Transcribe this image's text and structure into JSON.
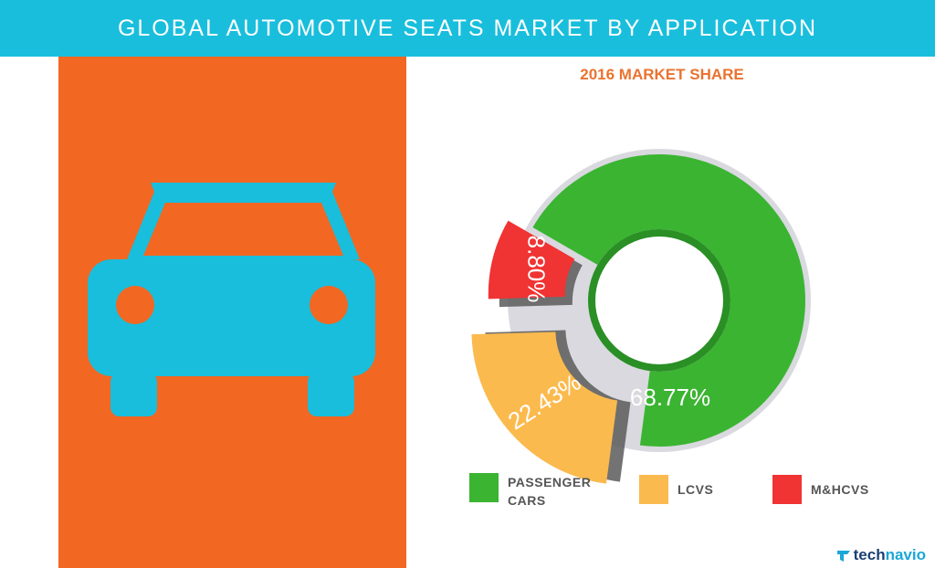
{
  "header": {
    "title": "GLOBAL AUTOMOTIVE SEATS MARKET BY APPLICATION",
    "background_color": "#19bedc"
  },
  "left_panel": {
    "background_color": "#f26722",
    "icon": "car-front-icon",
    "icon_color": "#19bedc"
  },
  "chart_data": {
    "type": "pie",
    "title": "2016 MARKET SHARE",
    "categories": [
      "PASSENGER CARS",
      "LCVS",
      "M&HCVS"
    ],
    "values": [
      68.77,
      22.43,
      8.8
    ],
    "labels": [
      "68.77%",
      "22.43%",
      "8.80%"
    ],
    "colors": [
      "#3bb432",
      "#fbba4e",
      "#f03333"
    ],
    "legend_position": "bottom",
    "style": "exploded donut"
  },
  "legend": [
    {
      "label": "PASSENGER\nCARS",
      "color": "#3bb432"
    },
    {
      "label": "LCVS",
      "color": "#fbba4e"
    },
    {
      "label": "M&HCVS",
      "color": "#f03333"
    }
  ],
  "brand": {
    "part1": "tech",
    "part2": "navio",
    "icon": "technavio-logo-icon"
  }
}
